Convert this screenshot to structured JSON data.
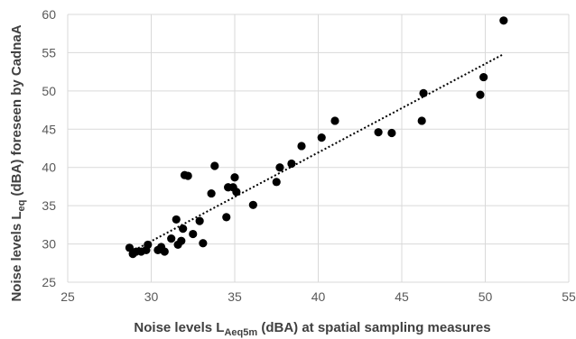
{
  "chart_data": {
    "type": "scatter",
    "xlabel": {
      "main": "Noise levels L",
      "sub": "Aeq5m",
      "rest": " (dBA) at spatial sampling measures"
    },
    "ylabel": {
      "main": "Noise levels L",
      "sub": "eq",
      "rest": " (dBA) foreseen by CadnaA"
    },
    "xlim": [
      25,
      55
    ],
    "ylim": [
      25,
      60
    ],
    "xticks": [
      25,
      30,
      35,
      40,
      45,
      50,
      55
    ],
    "yticks": [
      25,
      30,
      35,
      40,
      45,
      50,
      55,
      60
    ],
    "xtick_labels": [
      "25",
      "30",
      "35",
      "40",
      "45",
      "50",
      "55"
    ],
    "ytick_labels": [
      "25",
      "30",
      "35",
      "40",
      "45",
      "50",
      "55",
      "60"
    ],
    "grid": "vertical and horizontal",
    "series": [
      {
        "marker_color": "#000000",
        "points": [
          [
            28.7,
            29.5
          ],
          [
            28.9,
            28.7
          ],
          [
            29.1,
            29.0
          ],
          [
            29.4,
            29.0
          ],
          [
            29.7,
            29.2
          ],
          [
            29.8,
            29.9
          ],
          [
            30.4,
            29.2
          ],
          [
            30.6,
            29.6
          ],
          [
            30.8,
            29.0
          ],
          [
            31.2,
            30.7
          ],
          [
            31.5,
            33.2
          ],
          [
            31.6,
            29.9
          ],
          [
            31.8,
            30.4
          ],
          [
            31.9,
            32.0
          ],
          [
            32.0,
            39.0
          ],
          [
            32.2,
            38.9
          ],
          [
            32.5,
            31.3
          ],
          [
            32.9,
            33.0
          ],
          [
            33.1,
            30.1
          ],
          [
            33.6,
            36.6
          ],
          [
            33.8,
            40.2
          ],
          [
            34.5,
            33.5
          ],
          [
            34.6,
            37.4
          ],
          [
            34.9,
            37.4
          ],
          [
            35.0,
            38.7
          ],
          [
            35.1,
            36.8
          ],
          [
            36.1,
            35.1
          ],
          [
            37.5,
            38.1
          ],
          [
            37.7,
            40.0
          ],
          [
            38.4,
            40.5
          ],
          [
            39.0,
            42.8
          ],
          [
            40.2,
            43.9
          ],
          [
            41.0,
            46.1
          ],
          [
            43.6,
            44.6
          ],
          [
            44.4,
            44.5
          ],
          [
            46.2,
            46.1
          ],
          [
            46.3,
            49.7
          ],
          [
            49.7,
            49.5
          ],
          [
            49.9,
            51.8
          ],
          [
            51.1,
            59.2
          ]
        ]
      }
    ],
    "trendline": {
      "style": "dotted",
      "color": "#000000",
      "x": [
        29.0,
        51.0
      ],
      "y": [
        29.2,
        54.7
      ]
    }
  }
}
